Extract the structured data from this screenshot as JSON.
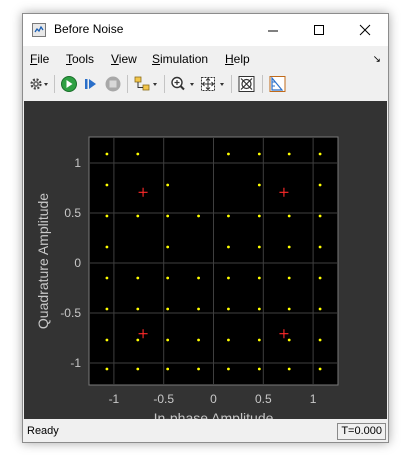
{
  "window": {
    "title": "Before Noise"
  },
  "menu": {
    "items": [
      "File",
      "Tools",
      "View",
      "Simulation",
      "Help"
    ],
    "overflow_icon": "chevron-menu-icon"
  },
  "toolbar": {
    "icons": [
      "gear-icon",
      "run-icon",
      "step-forward-icon",
      "stop-icon",
      "signal-select-icon",
      "zoom-icon",
      "fit-to-view-icon",
      "style-icon",
      "measurement-icon"
    ]
  },
  "status": {
    "text": "Ready",
    "time": "T=0.000"
  },
  "colors": {
    "plot_bg": "#000000",
    "figure_bg": "#333333",
    "received": "#ffff00",
    "reference": "#ff2a2a",
    "grid": "#3f3f3f",
    "axis_text": "#c8c8c8"
  },
  "chart_data": {
    "type": "scatter",
    "xlabel": "In-phase Amplitude",
    "ylabel": "Quadrature Amplitude",
    "xlim": [
      -1.25,
      1.25
    ],
    "ylim": [
      -1.22,
      1.26
    ],
    "xticks": [
      -1,
      -0.5,
      0,
      0.5,
      1
    ],
    "xtick_labels": [
      "-1",
      "-0.5",
      "0",
      "0.5",
      "1"
    ],
    "yticks": [
      -1,
      -0.5,
      0,
      0.5,
      1
    ],
    "ytick_labels": [
      "-1",
      "-0.5",
      "0",
      "0.5",
      "1"
    ],
    "grid": true,
    "series": [
      {
        "marker": "dot",
        "color": "#ffff00",
        "points": [
          [
            -1.07,
            1.09
          ],
          [
            -0.76,
            1.09
          ],
          [
            0.15,
            1.09
          ],
          [
            0.46,
            1.09
          ],
          [
            0.76,
            1.09
          ],
          [
            1.07,
            1.09
          ],
          [
            -1.07,
            0.78
          ],
          [
            -0.46,
            0.78
          ],
          [
            0.46,
            0.78
          ],
          [
            1.07,
            0.78
          ],
          [
            -1.07,
            0.47
          ],
          [
            -0.76,
            0.47
          ],
          [
            -0.46,
            0.47
          ],
          [
            -0.15,
            0.47
          ],
          [
            0.15,
            0.47
          ],
          [
            0.46,
            0.47
          ],
          [
            0.76,
            0.47
          ],
          [
            1.07,
            0.47
          ],
          [
            -1.07,
            0.16
          ],
          [
            -0.46,
            0.16
          ],
          [
            0.15,
            0.16
          ],
          [
            0.46,
            0.16
          ],
          [
            0.76,
            0.16
          ],
          [
            1.07,
            0.16
          ],
          [
            -1.07,
            -0.15
          ],
          [
            -0.76,
            -0.15
          ],
          [
            -0.46,
            -0.15
          ],
          [
            -0.15,
            -0.15
          ],
          [
            0.15,
            -0.15
          ],
          [
            0.46,
            -0.15
          ],
          [
            0.76,
            -0.15
          ],
          [
            1.07,
            -0.15
          ],
          [
            -1.07,
            -0.46
          ],
          [
            -0.76,
            -0.46
          ],
          [
            -0.46,
            -0.46
          ],
          [
            -0.15,
            -0.46
          ],
          [
            0.15,
            -0.46
          ],
          [
            0.46,
            -0.46
          ],
          [
            0.76,
            -0.46
          ],
          [
            1.07,
            -0.46
          ],
          [
            -1.07,
            -0.77
          ],
          [
            -0.76,
            -0.77
          ],
          [
            -0.46,
            -0.77
          ],
          [
            -0.15,
            -0.77
          ],
          [
            0.15,
            -0.77
          ],
          [
            0.46,
            -0.77
          ],
          [
            0.76,
            -0.77
          ],
          [
            1.07,
            -0.77
          ],
          [
            -1.07,
            -1.06
          ],
          [
            -0.76,
            -1.06
          ],
          [
            -0.46,
            -1.06
          ],
          [
            -0.15,
            -1.06
          ],
          [
            0.15,
            -1.06
          ],
          [
            0.46,
            -1.06
          ],
          [
            0.76,
            -1.06
          ],
          [
            1.07,
            -1.06
          ]
        ]
      },
      {
        "marker": "plus",
        "color": "#ff2a2a",
        "points": [
          [
            -0.707,
            0.707
          ],
          [
            0.707,
            0.707
          ],
          [
            -0.707,
            -0.707
          ],
          [
            0.707,
            -0.707
          ]
        ]
      }
    ]
  }
}
